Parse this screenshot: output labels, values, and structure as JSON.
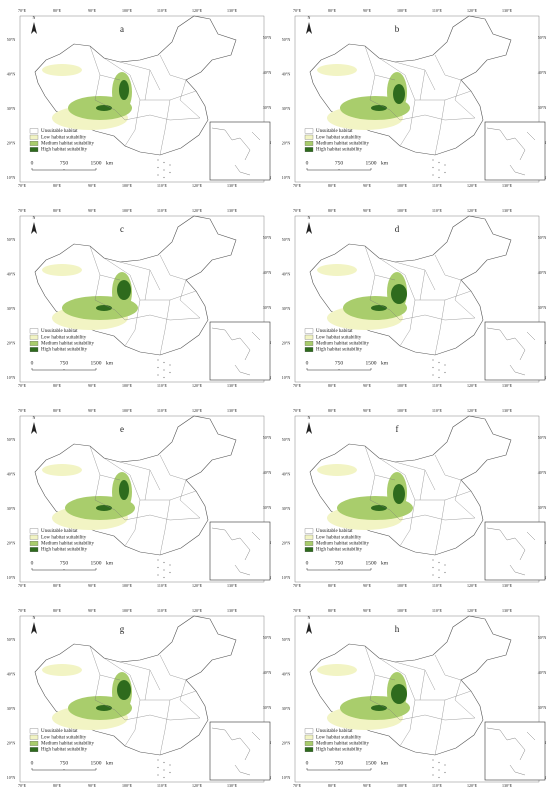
{
  "panels": [
    {
      "label": "a"
    },
    {
      "label": "b"
    },
    {
      "label": "c"
    },
    {
      "label": "d"
    },
    {
      "label": "e"
    },
    {
      "label": "f"
    },
    {
      "label": "g"
    },
    {
      "label": "h"
    }
  ],
  "legend": [
    {
      "label": "Unsuitable habitat",
      "color": "#ffffff"
    },
    {
      "label": "Low habitat suitability",
      "color": "#f2f4c4"
    },
    {
      "label": "Medium habitat suitability",
      "color": "#a9cd6c"
    },
    {
      "label": "High habitat suitability",
      "color": "#2e6b1d"
    }
  ],
  "north": "N",
  "scale": {
    "labels": [
      "0",
      "750",
      "1500"
    ],
    "unit": "km"
  },
  "longitude_labels": [
    "70°E",
    "80°E",
    "90°E",
    "100°E",
    "110°E",
    "120°E",
    "130°E"
  ],
  "latitude_labels": [
    "50°N",
    "40°N",
    "30°N",
    "20°N",
    "10°N"
  ]
}
